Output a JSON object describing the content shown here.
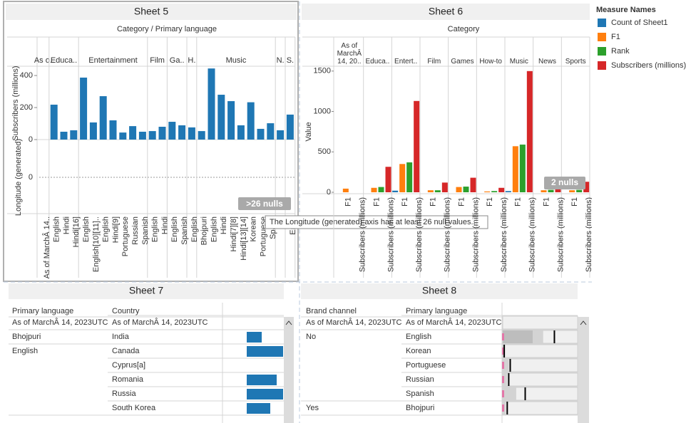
{
  "sheet5": {
    "title": "Sheet 5",
    "header": "Category  /  Primary language",
    "color": "#1f77b4",
    "y_label": "Subscribers (millions)",
    "ylim": [
      0,
      458
    ],
    "yticks": [
      0,
      200,
      400
    ],
    "y2_label": "Longitude (generated)",
    "y2lim": [
      -1,
      1
    ],
    "y2ticks": [
      0
    ],
    "nulls_badge": ">26 nulls",
    "tooltip": "The Longitude (generated) axis has at least 26 null values.",
    "groups": [
      {
        "label": "As o..",
        "columns": [
          "As of MarchÂ 14.."
        ],
        "values": [
          null
        ]
      },
      {
        "label": "Educa..",
        "columns": [
          "English",
          "Hindi",
          "Hindi[16]"
        ],
        "values": [
          218,
          49,
          58
        ]
      },
      {
        "label": "Entertainment",
        "columns": [
          "English",
          "English[10][11]..",
          "English",
          "Hindi[9]",
          "Portuguese",
          "Russian",
          "Spanish"
        ],
        "values": [
          387,
          107,
          271,
          120,
          44,
          84,
          49
        ]
      },
      {
        "label": "Film",
        "columns": [
          "English",
          "Hindi"
        ],
        "values": [
          53,
          80
        ]
      },
      {
        "label": "Ga..",
        "columns": [
          "English",
          "Spanish"
        ],
        "values": [
          111,
          89
        ]
      },
      {
        "label": "H.",
        "columns": [
          "English"
        ],
        "values": [
          76
        ]
      },
      {
        "label": "Music",
        "columns": [
          "Bhojpuri",
          "English",
          "Hindi",
          "Hindi[7][8]",
          "Hindi[13][14]",
          "Korean",
          "Portuguese",
          "Span.."
        ],
        "values": [
          53,
          444,
          280,
          240,
          89,
          233,
          67,
          102
        ]
      },
      {
        "label": "N.",
        "columns": [
          "Hi.."
        ],
        "values": [
          58
        ]
      },
      {
        "label": "S.",
        "columns": [
          "Eng.."
        ],
        "values": [
          156
        ]
      }
    ]
  },
  "sheet6": {
    "title": "Sheet 6",
    "header": "Category",
    "legend_title": "Measure Names",
    "y_label": "Value",
    "ylim": [
      0,
      1560
    ],
    "yticks": [
      0,
      500,
      1000,
      1500
    ],
    "nulls_badge": "2 nulls",
    "measure_labels": [
      "F1",
      "Subscribers (millions)"
    ],
    "categories": [
      "As of MarchÂ 14, 20..",
      "Educa..",
      "Entert..",
      "Film",
      "Games",
      "How-to",
      "Music",
      "News",
      "Sports"
    ],
    "series": [
      {
        "name": "Count of Sheet1",
        "color": "#1f77b4",
        "values": [
          null,
          null,
          20,
          null,
          null,
          null,
          15,
          null,
          null
        ]
      },
      {
        "name": "F1",
        "color": "#ff7f0e",
        "values": [
          45,
          55,
          350,
          25,
          65,
          10,
          570,
          25,
          25
        ]
      },
      {
        "name": "Rank",
        "color": "#2ca02c",
        "values": [
          null,
          65,
          370,
          25,
          70,
          15,
          590,
          30,
          30
        ]
      },
      {
        "name": "Subscribers (millions)",
        "color": "#d62728",
        "values": [
          null,
          315,
          1130,
          120,
          180,
          55,
          1500,
          120,
          130
        ]
      }
    ]
  },
  "sheet7": {
    "title": "Sheet 7",
    "columns": [
      "Primary language",
      "Country"
    ],
    "color": "#1f77b4",
    "xlim": [
      0,
      51
    ],
    "rows": [
      {
        "label": "As of MarchÂ 14, 2023UTC",
        "items": [
          {
            "name": "As of MarchÂ 14, 2023UTC",
            "value": null
          }
        ]
      },
      {
        "label": "Bhojpuri",
        "items": [
          {
            "name": "India",
            "value": 21
          }
        ]
      },
      {
        "label": "English",
        "items": [
          {
            "name": "Canada",
            "value": 51
          },
          {
            "name": "Cyprus[a]",
            "value": null
          },
          {
            "name": "Romania",
            "value": 42
          },
          {
            "name": "Russia",
            "value": 51
          },
          {
            "name": "South Korea",
            "value": 33
          }
        ]
      }
    ]
  },
  "sheet8": {
    "title": "Sheet 8",
    "columns": [
      "Brand channel",
      "Primary language"
    ],
    "xlim": [
      0,
      100
    ],
    "rows": [
      {
        "label": "As of MarchÂ 14, 2023UTC",
        "items": [
          {
            "name": "As of MarchÂ 14, 2023UTC",
            "bands": [],
            "line": null
          }
        ]
      },
      {
        "label": "No",
        "items": [
          {
            "name": "English",
            "bands": [
              54,
              40
            ],
            "line": 69
          },
          {
            "name": "Korean",
            "bands": [
              2
            ],
            "line": 2
          },
          {
            "name": "Portuguese",
            "bands": [
              8
            ],
            "line": 10
          },
          {
            "name": "Russian",
            "bands": [
              6
            ],
            "line": 8
          },
          {
            "name": "Spanish",
            "bands": [
              18
            ],
            "line": 30
          }
        ]
      },
      {
        "label": "Yes",
        "items": [
          {
            "name": "Bhojpuri",
            "bands": [
              4
            ],
            "line": 6
          }
        ]
      }
    ]
  }
}
